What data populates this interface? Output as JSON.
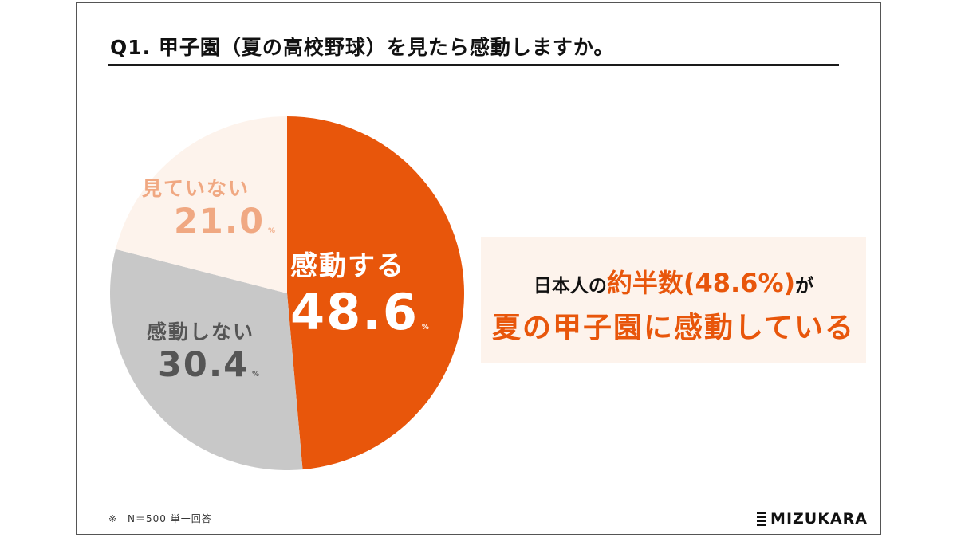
{
  "title": "Q1. 甲子園（夏の高校野球）を見たら感動しますか。",
  "chart_data": {
    "type": "pie",
    "slices": [
      {
        "label": "感動する",
        "value": 48.6,
        "display": "48.6",
        "color": "#e8560b",
        "label_color": "#ffffff"
      },
      {
        "label": "感動しない",
        "value": 30.4,
        "display": "30.4",
        "color": "#c8c8c8",
        "label_color": "#555555"
      },
      {
        "label": "見ていない",
        "value": 21.0,
        "display": "21.0",
        "color": "#fdf3ec",
        "label_color": "#f0a882"
      }
    ],
    "unit": "%"
  },
  "callout": {
    "line1_prefix": "日本人の",
    "line1_highlight": "約半数(48.6%)",
    "line1_suffix": "が",
    "line2": "夏の甲子園に感動している",
    "highlight_color": "#e8560b"
  },
  "footnote": "※　N＝500 単一回答",
  "brand": "MIZUKARA"
}
